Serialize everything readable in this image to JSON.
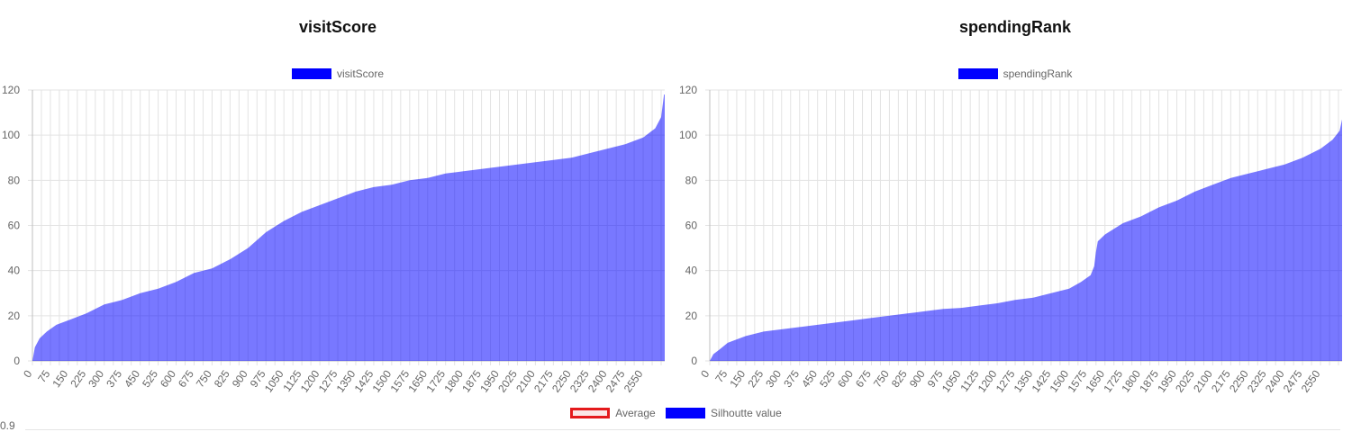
{
  "chart_data": [
    {
      "type": "area",
      "title": "visitScore",
      "series": [
        {
          "name": "visitScore",
          "color": "#0000ff",
          "fill": "rgba(0,0,255,0.53)"
        }
      ],
      "x_tick_labels": [
        "0",
        "75",
        "150",
        "225",
        "300",
        "375",
        "450",
        "525",
        "600",
        "675",
        "750",
        "825",
        "900",
        "975",
        "1050",
        "1125",
        "1200",
        "1275",
        "1350",
        "1425",
        "1500",
        "1575",
        "1650",
        "1725",
        "1800",
        "1875",
        "1950",
        "2025",
        "2100",
        "2175",
        "2250",
        "2325",
        "2400",
        "2475",
        "2550"
      ],
      "xlim": [
        0,
        2640
      ],
      "ylim": [
        0,
        120
      ],
      "y_ticks": [
        "0",
        "20",
        "40",
        "60",
        "80",
        "100",
        "120"
      ],
      "grid": true,
      "legend_placement": "top",
      "points": [
        [
          0,
          0
        ],
        [
          10,
          6
        ],
        [
          30,
          10
        ],
        [
          60,
          13
        ],
        [
          100,
          16
        ],
        [
          150,
          18
        ],
        [
          225,
          21
        ],
        [
          300,
          25
        ],
        [
          375,
          27
        ],
        [
          450,
          30
        ],
        [
          525,
          32
        ],
        [
          600,
          35
        ],
        [
          675,
          39
        ],
        [
          750,
          41
        ],
        [
          825,
          45
        ],
        [
          900,
          50
        ],
        [
          975,
          57
        ],
        [
          1050,
          62
        ],
        [
          1125,
          66
        ],
        [
          1200,
          69
        ],
        [
          1275,
          72
        ],
        [
          1350,
          75
        ],
        [
          1425,
          77
        ],
        [
          1500,
          78
        ],
        [
          1575,
          80
        ],
        [
          1650,
          81
        ],
        [
          1725,
          83
        ],
        [
          1800,
          84
        ],
        [
          1875,
          85
        ],
        [
          1950,
          86
        ],
        [
          2025,
          87
        ],
        [
          2100,
          88
        ],
        [
          2175,
          89
        ],
        [
          2250,
          90
        ],
        [
          2325,
          92
        ],
        [
          2400,
          94
        ],
        [
          2475,
          96
        ],
        [
          2550,
          99
        ],
        [
          2600,
          103
        ],
        [
          2625,
          108
        ],
        [
          2637,
          118
        ],
        [
          2640,
          118
        ]
      ]
    },
    {
      "type": "area",
      "title": "spendingRank",
      "series": [
        {
          "name": "spendingRank",
          "color": "#0000ff",
          "fill": "rgba(0,0,255,0.53)"
        }
      ],
      "x_tick_labels": [
        "0",
        "75",
        "150",
        "225",
        "300",
        "375",
        "450",
        "525",
        "600",
        "675",
        "750",
        "825",
        "900",
        "975",
        "1050",
        "1125",
        "1200",
        "1275",
        "1350",
        "1425",
        "1500",
        "1575",
        "1650",
        "1725",
        "1800",
        "1875",
        "1950",
        "2025",
        "2100",
        "2175",
        "2250",
        "2325",
        "2400",
        "2475",
        "2550"
      ],
      "xlim": [
        0,
        2640
      ],
      "ylim": [
        0,
        120
      ],
      "y_ticks": [
        "0",
        "20",
        "40",
        "60",
        "80",
        "100",
        "120"
      ],
      "grid": true,
      "legend_placement": "top",
      "points": [
        [
          0,
          0
        ],
        [
          15,
          3
        ],
        [
          40,
          5
        ],
        [
          75,
          8
        ],
        [
          150,
          11
        ],
        [
          225,
          13
        ],
        [
          300,
          14
        ],
        [
          375,
          15
        ],
        [
          450,
          16
        ],
        [
          525,
          17
        ],
        [
          600,
          18
        ],
        [
          675,
          19
        ],
        [
          750,
          20
        ],
        [
          825,
          21
        ],
        [
          900,
          22
        ],
        [
          975,
          23
        ],
        [
          1050,
          23.5
        ],
        [
          1125,
          24.5
        ],
        [
          1200,
          25.5
        ],
        [
          1275,
          27
        ],
        [
          1350,
          28
        ],
        [
          1425,
          30
        ],
        [
          1500,
          32
        ],
        [
          1550,
          35
        ],
        [
          1590,
          38
        ],
        [
          1605,
          42
        ],
        [
          1612,
          48
        ],
        [
          1620,
          53
        ],
        [
          1650,
          56
        ],
        [
          1725,
          61
        ],
        [
          1800,
          64
        ],
        [
          1875,
          68
        ],
        [
          1950,
          71
        ],
        [
          2025,
          75
        ],
        [
          2100,
          78
        ],
        [
          2175,
          81
        ],
        [
          2250,
          83
        ],
        [
          2325,
          85
        ],
        [
          2400,
          87
        ],
        [
          2475,
          90
        ],
        [
          2550,
          94
        ],
        [
          2600,
          98
        ],
        [
          2630,
          102
        ],
        [
          2640,
          107
        ]
      ]
    }
  ],
  "bottom_legend": {
    "average_label": "Average",
    "silhouette_label": "Silhoutte value"
  },
  "peek_axis_label": "0.9"
}
